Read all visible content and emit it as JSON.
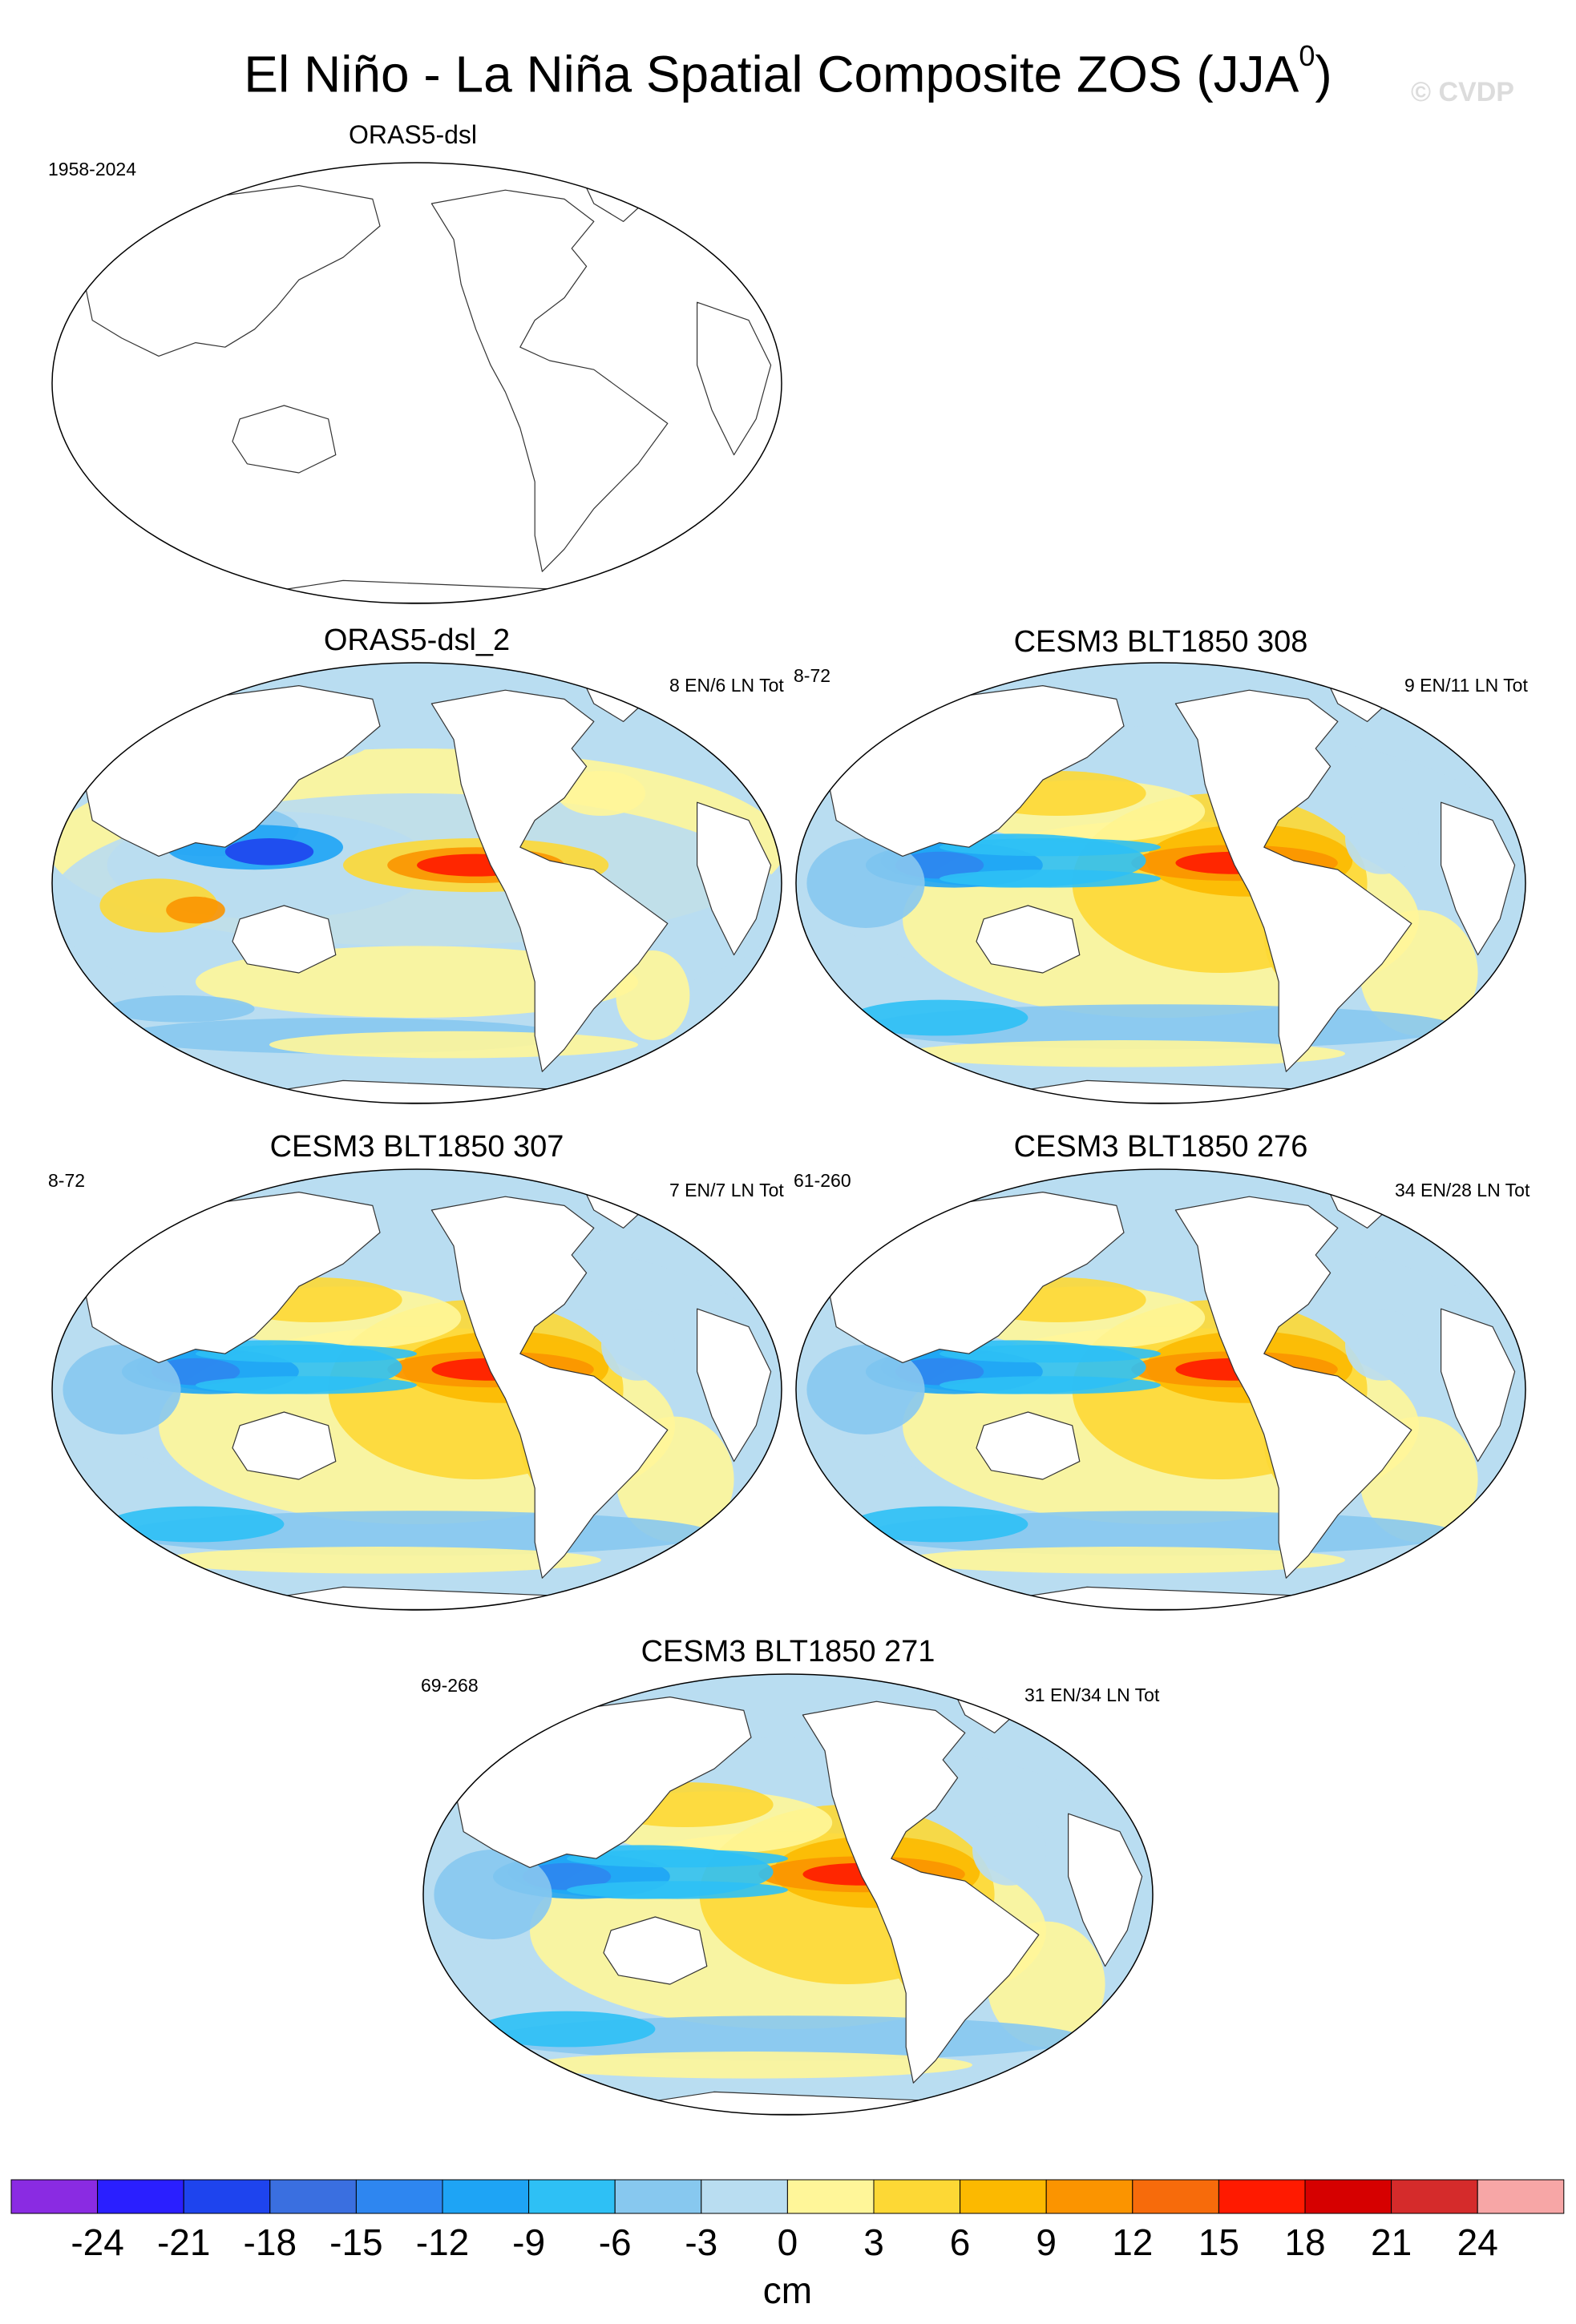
{
  "title": "El Niño - La Niña Spatial Composite ZOS (JJA",
  "title_superscript": "0",
  "title_close": ")",
  "watermark": "© CVDP",
  "panels": [
    {
      "title": "ORAS5-dsl",
      "period": "1958-2024",
      "counts": "",
      "pattern": "blank"
    },
    {
      "title": "ORAS5-dsl_2",
      "period": "",
      "counts": "8 EN/6 LN Tot",
      "pattern": "obs"
    },
    {
      "title": "CESM3 BLT1850 308",
      "period": "8-72",
      "counts": "9 EN/11 LN Tot",
      "pattern": "model"
    },
    {
      "title": "CESM3 BLT1850 307",
      "period": "8-72",
      "counts": "7 EN/7 LN Tot",
      "pattern": "model"
    },
    {
      "title": "CESM3 BLT1850 276",
      "period": "61-260",
      "counts": "34 EN/28 LN Tot",
      "pattern": "model"
    },
    {
      "title": "CESM3 BLT1850 271",
      "period": "69-268",
      "counts": "31 EN/34 LN Tot",
      "pattern": "model"
    }
  ],
  "colorbar": {
    "colors": [
      "#8a2be2",
      "#2a1fff",
      "#1e44ee",
      "#3a6fe0",
      "#2e86f0",
      "#1ea4f5",
      "#2ec0f5",
      "#87c8ef",
      "#b9ddf1",
      "#fff699",
      "#fdd835",
      "#fcb900",
      "#fb9400",
      "#f76b0b",
      "#ff1a00",
      "#d60000",
      "#d52b2b",
      "#f7a6a6"
    ],
    "labels": [
      "-24",
      "-21",
      "-18",
      "-15",
      "-12",
      "-9",
      "-6",
      "-3",
      "0",
      "3",
      "6",
      "9",
      "12",
      "15",
      "18",
      "21",
      "24"
    ],
    "units": "cm"
  }
}
